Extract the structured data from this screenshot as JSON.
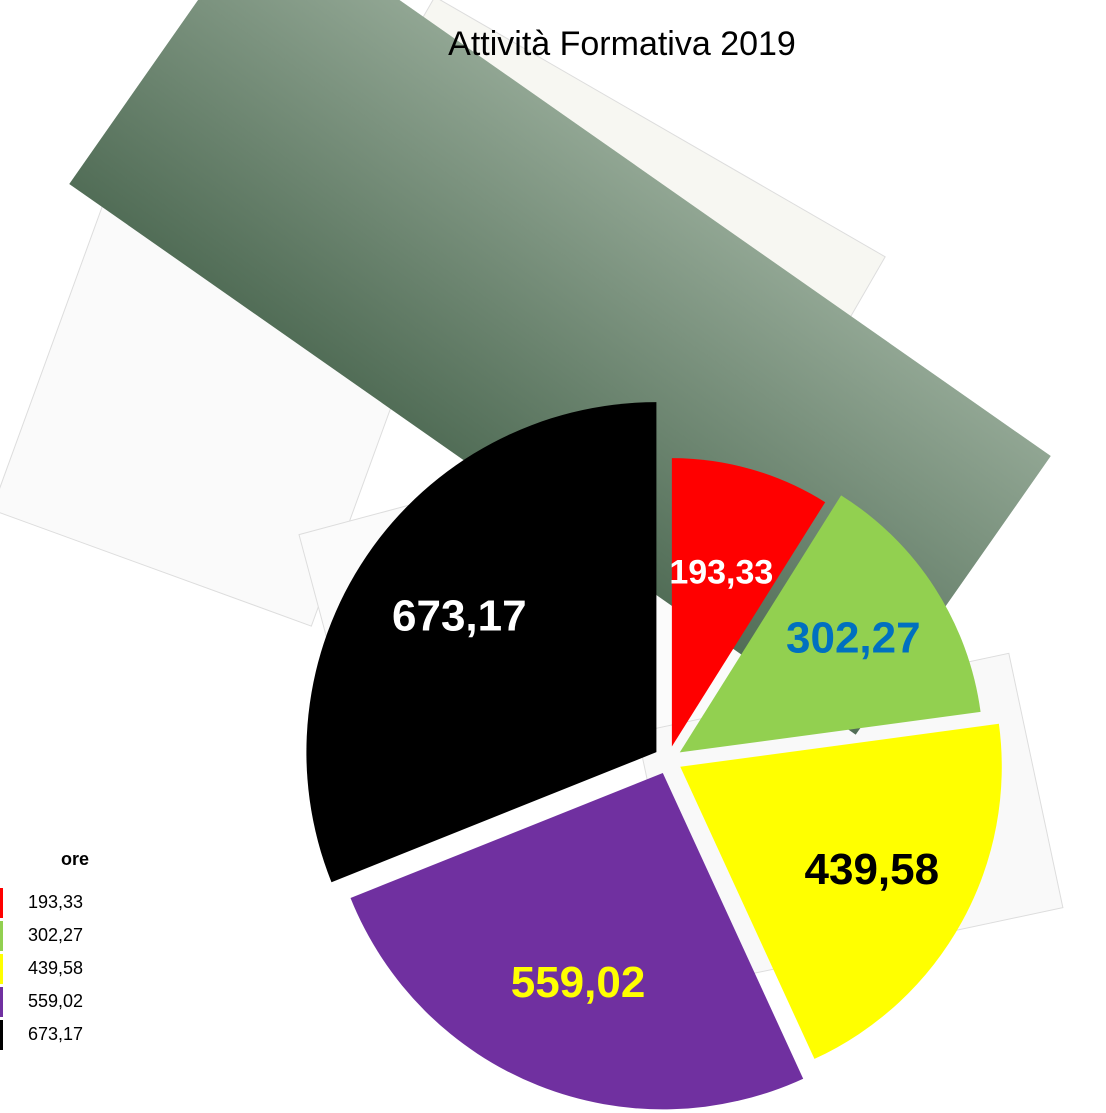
{
  "chart_data": {
    "type": "pie",
    "title": "Attività Formativa 2019",
    "legend_title": "ore",
    "values": [
      193.33,
      302.27,
      439.58,
      559.02,
      673.17
    ],
    "value_labels": [
      "193,33",
      "302,27",
      "439,58",
      "559,02",
      "673,17"
    ],
    "colors": [
      "#ff0000",
      "#92d050",
      "#ffff00",
      "#7030a0",
      "#000000"
    ],
    "label_colors": [
      "#ffffff",
      "#0070c0",
      "#000000",
      "#ffff00",
      "#ffffff"
    ],
    "legend": "bottom-left"
  }
}
